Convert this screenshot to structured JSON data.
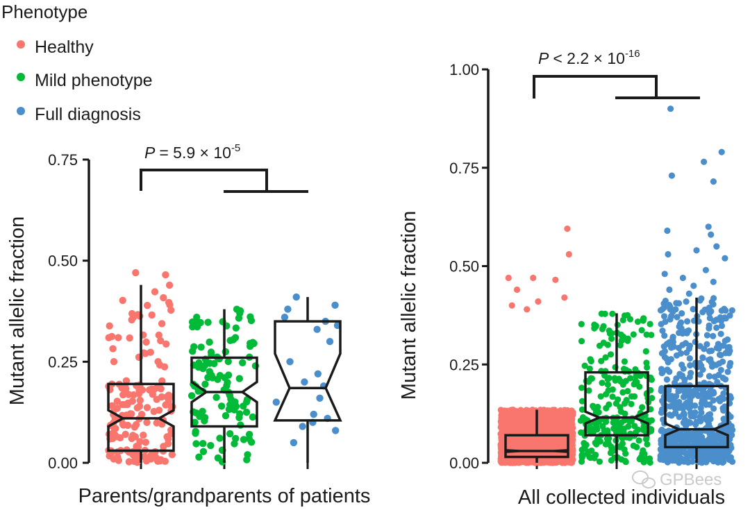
{
  "colors": {
    "healthy": "#F8766D",
    "mild": "#00BA38",
    "full": "#4A8ECC",
    "axis": "#1a1a1a",
    "watermark": "#bbbbbb"
  },
  "legend": {
    "title": "Phenotype",
    "items": [
      {
        "label": "Healthy",
        "key": "healthy"
      },
      {
        "label": "Mild phenotype",
        "key": "mild"
      },
      {
        "label": "Full diagnosis",
        "key": "full"
      }
    ]
  },
  "watermark": {
    "text": "GPBees"
  },
  "chart_data": [
    {
      "type": "box",
      "title": "",
      "xlabel": "Parents/grandparents of patients",
      "ylabel": "Mutant allelic fraction",
      "ylim": [
        0,
        0.75
      ],
      "yticks": [
        0,
        0.25,
        0.5,
        0.75
      ],
      "ytick_labels": [
        "0.00",
        "0.25",
        "0.50",
        "0.75"
      ],
      "significance": {
        "prefix": "P",
        "op": "= 5.9 × 10",
        "exp": "-5"
      },
      "groups": [
        {
          "name": "Healthy",
          "key": "healthy",
          "n": 170,
          "whisker_low": 0.0,
          "q1": 0.03,
          "median": 0.11,
          "q3": 0.195,
          "whisker_high": 0.44,
          "notch": [
            0.09,
            0.13
          ],
          "outliers": [
            0.47,
            0.465
          ]
        },
        {
          "name": "Mild phenotype",
          "key": "mild",
          "n": 110,
          "whisker_low": 0.0,
          "q1": 0.09,
          "median": 0.175,
          "q3": 0.26,
          "whisker_high": 0.38,
          "notch": [
            0.15,
            0.2
          ],
          "outliers": []
        },
        {
          "name": "Full diagnosis",
          "key": "full",
          "n": 20,
          "whisker_low": 0.0,
          "q1": 0.105,
          "median": 0.185,
          "q3": 0.35,
          "whisker_high": 0.41,
          "notch": [
            0.105,
            0.27
          ],
          "outliers": [],
          "points": [
            0.39,
            0.41,
            0.38,
            0.36,
            0.35,
            0.34,
            0.3,
            0.33,
            0.25,
            0.22,
            0.2,
            0.19,
            0.16,
            0.15,
            0.12,
            0.11,
            0.1,
            0.09,
            0.08,
            0.05
          ]
        }
      ]
    },
    {
      "type": "box",
      "title": "",
      "xlabel": "All collected individuals",
      "ylabel": "Mutant allelic fraction",
      "ylim": [
        0,
        1.0
      ],
      "yticks": [
        0,
        0.25,
        0.5,
        0.75,
        1.0
      ],
      "ytick_labels": [
        "0.00",
        "0.25",
        "0.50",
        "0.75",
        "1.00"
      ],
      "significance": {
        "prefix": "P",
        "op": "< 2.2 × 10",
        "exp": "-16"
      },
      "groups": [
        {
          "name": "Healthy",
          "key": "healthy",
          "n": 2600,
          "whisker_low": 0.0,
          "q1": 0.015,
          "median": 0.03,
          "q3": 0.07,
          "whisker_high": 0.135,
          "notch": [
            0.028,
            0.032
          ],
          "outliers": [
            0.595,
            0.53,
            0.47,
            0.47,
            0.465,
            0.44,
            0.42,
            0.41,
            0.4,
            0.39
          ]
        },
        {
          "name": "Mild phenotype",
          "key": "mild",
          "n": 280,
          "whisker_low": 0.0,
          "q1": 0.07,
          "median": 0.115,
          "q3": 0.23,
          "whisker_high": 0.38,
          "notch": [
            0.1,
            0.13
          ],
          "outliers": []
        },
        {
          "name": "Full diagnosis",
          "key": "full",
          "n": 700,
          "whisker_low": 0.0,
          "q1": 0.04,
          "median": 0.085,
          "q3": 0.195,
          "whisker_high": 0.42,
          "notch": [
            0.07,
            0.1
          ],
          "outliers": [
            0.9,
            0.79,
            0.765,
            0.73,
            0.715,
            0.6,
            0.59,
            0.58,
            0.55,
            0.54,
            0.53,
            0.52,
            0.49,
            0.48,
            0.47,
            0.46,
            0.45,
            0.44,
            0.43
          ]
        }
      ]
    }
  ]
}
